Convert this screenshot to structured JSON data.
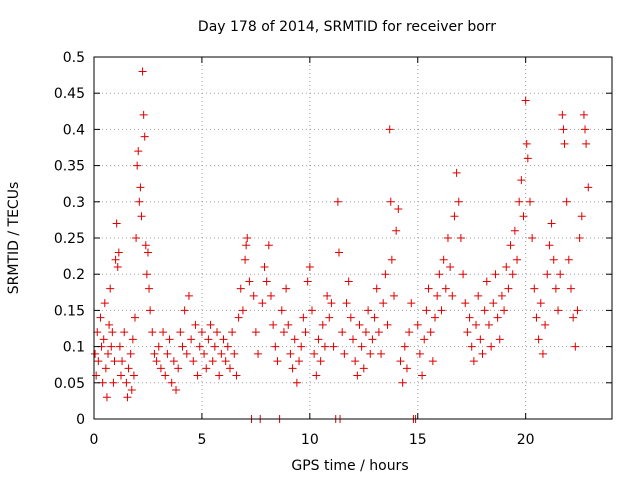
{
  "chart_data": {
    "type": "scatter",
    "title": "Day 178 of 2014, SRMTID for receiver borr",
    "xlabel": "GPS time / hours",
    "ylabel": "SRMTID / TECUs",
    "xlim": [
      0,
      24
    ],
    "ylim": [
      0,
      0.5
    ],
    "x_ticks": [
      0,
      5,
      10,
      15,
      20
    ],
    "x_tick_labels": [
      "0",
      "5",
      "10",
      "15",
      "20"
    ],
    "y_ticks": [
      0,
      0.05,
      0.1,
      0.15,
      0.2,
      0.25,
      0.3,
      0.35,
      0.4,
      0.45,
      0.5
    ],
    "y_tick_labels": [
      "0",
      "0.05",
      "0.1",
      "0.15",
      "0.2",
      "0.25",
      "0.3",
      "0.35",
      "0.4",
      "0.45",
      "0.5"
    ],
    "grid": true,
    "marker": "+",
    "marker_color": "#dd0000",
    "series": [
      {
        "name": "SRMTID",
        "points": [
          [
            0.05,
            0.09
          ],
          [
            0.1,
            0.06
          ],
          [
            0.15,
            0.12
          ],
          [
            0.2,
            0.08
          ],
          [
            0.3,
            0.14
          ],
          [
            0.35,
            0.1
          ],
          [
            0.4,
            0.05
          ],
          [
            0.45,
            0.11
          ],
          [
            0.5,
            0.16
          ],
          [
            0.55,
            0.07
          ],
          [
            0.6,
            0.03
          ],
          [
            0.65,
            0.09
          ],
          [
            0.7,
            0.13
          ],
          [
            0.75,
            0.18
          ],
          [
            0.8,
            0.1
          ],
          [
            0.85,
            0.12
          ],
          [
            0.9,
            0.05
          ],
          [
            0.95,
            0.08
          ],
          [
            1.0,
            0.22
          ],
          [
            1.05,
            0.27
          ],
          [
            1.1,
            0.21
          ],
          [
            1.15,
            0.23
          ],
          [
            1.2,
            0.1
          ],
          [
            1.25,
            0.06
          ],
          [
            1.3,
            0.08
          ],
          [
            1.4,
            0.12
          ],
          [
            1.5,
            0.05
          ],
          [
            1.55,
            0.03
          ],
          [
            1.6,
            0.07
          ],
          [
            1.7,
            0.09
          ],
          [
            1.75,
            0.04
          ],
          [
            1.8,
            0.11
          ],
          [
            1.85,
            0.06
          ],
          [
            1.9,
            0.14
          ],
          [
            1.95,
            0.25
          ],
          [
            2.0,
            0.35
          ],
          [
            2.05,
            0.37
          ],
          [
            2.1,
            0.3
          ],
          [
            2.15,
            0.32
          ],
          [
            2.2,
            0.28
          ],
          [
            2.25,
            0.48
          ],
          [
            2.3,
            0.42
          ],
          [
            2.35,
            0.39
          ],
          [
            2.4,
            0.24
          ],
          [
            2.45,
            0.2
          ],
          [
            2.5,
            0.23
          ],
          [
            2.55,
            0.18
          ],
          [
            2.6,
            0.15
          ],
          [
            2.7,
            0.12
          ],
          [
            2.8,
            0.09
          ],
          [
            2.9,
            0.08
          ],
          [
            3.0,
            0.1
          ],
          [
            3.1,
            0.07
          ],
          [
            3.2,
            0.12
          ],
          [
            3.3,
            0.06
          ],
          [
            3.4,
            0.09
          ],
          [
            3.5,
            0.11
          ],
          [
            3.6,
            0.05
          ],
          [
            3.7,
            0.08
          ],
          [
            3.8,
            0.04
          ],
          [
            3.9,
            0.07
          ],
          [
            4.0,
            0.12
          ],
          [
            4.1,
            0.1
          ],
          [
            4.2,
            0.15
          ],
          [
            4.3,
            0.09
          ],
          [
            4.4,
            0.17
          ],
          [
            4.5,
            0.11
          ],
          [
            4.6,
            0.08
          ],
          [
            4.7,
            0.13
          ],
          [
            4.8,
            0.06
          ],
          [
            4.9,
            0.1
          ],
          [
            5.0,
            0.12
          ],
          [
            5.1,
            0.09
          ],
          [
            5.2,
            0.07
          ],
          [
            5.3,
            0.11
          ],
          [
            5.4,
            0.13
          ],
          [
            5.5,
            0.08
          ],
          [
            5.6,
            0.1
          ],
          [
            5.7,
            0.12
          ],
          [
            5.8,
            0.06
          ],
          [
            5.9,
            0.09
          ],
          [
            6.0,
            0.11
          ],
          [
            6.1,
            0.08
          ],
          [
            6.2,
            0.1
          ],
          [
            6.3,
            0.07
          ],
          [
            6.4,
            0.12
          ],
          [
            6.5,
            0.09
          ],
          [
            6.6,
            0.06
          ],
          [
            6.7,
            0.14
          ],
          [
            6.8,
            0.18
          ],
          [
            6.9,
            0.15
          ],
          [
            7.0,
            0.22
          ],
          [
            7.05,
            0.24
          ],
          [
            7.1,
            0.25
          ],
          [
            7.2,
            0.19
          ],
          [
            7.3,
            0.0
          ],
          [
            7.4,
            0.17
          ],
          [
            7.5,
            0.12
          ],
          [
            7.6,
            0.09
          ],
          [
            7.7,
            0.0
          ],
          [
            7.8,
            0.16
          ],
          [
            7.9,
            0.21
          ],
          [
            8.0,
            0.19
          ],
          [
            8.1,
            0.24
          ],
          [
            8.2,
            0.17
          ],
          [
            8.3,
            0.13
          ],
          [
            8.4,
            0.1
          ],
          [
            8.5,
            0.08
          ],
          [
            8.6,
            0.0
          ],
          [
            8.7,
            0.15
          ],
          [
            8.8,
            0.12
          ],
          [
            8.9,
            0.18
          ],
          [
            9.0,
            0.13
          ],
          [
            9.1,
            0.09
          ],
          [
            9.2,
            0.07
          ],
          [
            9.3,
            0.11
          ],
          [
            9.4,
            0.05
          ],
          [
            9.5,
            0.08
          ],
          [
            9.6,
            0.1
          ],
          [
            9.7,
            0.14
          ],
          [
            9.8,
            0.12
          ],
          [
            9.9,
            0.19
          ],
          [
            10.0,
            0.21
          ],
          [
            10.1,
            0.15
          ],
          [
            10.2,
            0.09
          ],
          [
            10.3,
            0.06
          ],
          [
            10.4,
            0.11
          ],
          [
            10.5,
            0.08
          ],
          [
            10.6,
            0.13
          ],
          [
            10.7,
            0.1
          ],
          [
            10.8,
            0.17
          ],
          [
            10.9,
            0.14
          ],
          [
            11.0,
            0.16
          ],
          [
            11.1,
            0.1
          ],
          [
            11.2,
            0.0
          ],
          [
            11.3,
            0.3
          ],
          [
            11.35,
            0.23
          ],
          [
            11.4,
            0.0
          ],
          [
            11.5,
            0.12
          ],
          [
            11.6,
            0.09
          ],
          [
            11.7,
            0.16
          ],
          [
            11.8,
            0.19
          ],
          [
            11.9,
            0.14
          ],
          [
            12.0,
            0.11
          ],
          [
            12.1,
            0.08
          ],
          [
            12.2,
            0.06
          ],
          [
            12.3,
            0.13
          ],
          [
            12.4,
            0.1
          ],
          [
            12.5,
            0.07
          ],
          [
            12.6,
            0.12
          ],
          [
            12.7,
            0.15
          ],
          [
            12.8,
            0.09
          ],
          [
            12.9,
            0.11
          ],
          [
            13.0,
            0.14
          ],
          [
            13.1,
            0.18
          ],
          [
            13.2,
            0.12
          ],
          [
            13.3,
            0.09
          ],
          [
            13.4,
            0.16
          ],
          [
            13.5,
            0.2
          ],
          [
            13.6,
            0.13
          ],
          [
            13.7,
            0.4
          ],
          [
            13.75,
            0.3
          ],
          [
            13.8,
            0.22
          ],
          [
            13.9,
            0.17
          ],
          [
            14.0,
            0.26
          ],
          [
            14.1,
            0.29
          ],
          [
            14.2,
            0.08
          ],
          [
            14.3,
            0.05
          ],
          [
            14.4,
            0.1
          ],
          [
            14.5,
            0.07
          ],
          [
            14.6,
            0.12
          ],
          [
            14.7,
            0.16
          ],
          [
            14.8,
            0.0
          ],
          [
            14.9,
            0.0
          ],
          [
            15.0,
            0.13
          ],
          [
            15.1,
            0.09
          ],
          [
            15.2,
            0.06
          ],
          [
            15.3,
            0.11
          ],
          [
            15.4,
            0.15
          ],
          [
            15.5,
            0.18
          ],
          [
            15.6,
            0.12
          ],
          [
            15.7,
            0.08
          ],
          [
            15.8,
            0.14
          ],
          [
            15.9,
            0.17
          ],
          [
            16.0,
            0.2
          ],
          [
            16.1,
            0.15
          ],
          [
            16.2,
            0.22
          ],
          [
            16.3,
            0.18
          ],
          [
            16.4,
            0.25
          ],
          [
            16.5,
            0.21
          ],
          [
            16.6,
            0.17
          ],
          [
            16.7,
            0.28
          ],
          [
            16.8,
            0.34
          ],
          [
            16.9,
            0.3
          ],
          [
            17.0,
            0.25
          ],
          [
            17.1,
            0.2
          ],
          [
            17.2,
            0.16
          ],
          [
            17.3,
            0.12
          ],
          [
            17.4,
            0.14
          ],
          [
            17.5,
            0.1
          ],
          [
            17.6,
            0.08
          ],
          [
            17.7,
            0.13
          ],
          [
            17.8,
            0.17
          ],
          [
            17.9,
            0.11
          ],
          [
            18.0,
            0.09
          ],
          [
            18.1,
            0.15
          ],
          [
            18.2,
            0.19
          ],
          [
            18.3,
            0.13
          ],
          [
            18.4,
            0.1
          ],
          [
            18.5,
            0.16
          ],
          [
            18.6,
            0.2
          ],
          [
            18.7,
            0.14
          ],
          [
            18.8,
            0.11
          ],
          [
            18.9,
            0.17
          ],
          [
            19.0,
            0.15
          ],
          [
            19.1,
            0.21
          ],
          [
            19.2,
            0.18
          ],
          [
            19.3,
            0.24
          ],
          [
            19.4,
            0.2
          ],
          [
            19.5,
            0.26
          ],
          [
            19.6,
            0.22
          ],
          [
            19.7,
            0.3
          ],
          [
            19.8,
            0.33
          ],
          [
            19.9,
            0.28
          ],
          [
            20.0,
            0.44
          ],
          [
            20.05,
            0.38
          ],
          [
            20.1,
            0.36
          ],
          [
            20.2,
            0.3
          ],
          [
            20.3,
            0.25
          ],
          [
            20.4,
            0.18
          ],
          [
            20.5,
            0.14
          ],
          [
            20.6,
            0.11
          ],
          [
            20.7,
            0.16
          ],
          [
            20.8,
            0.09
          ],
          [
            20.9,
            0.13
          ],
          [
            21.0,
            0.2
          ],
          [
            21.1,
            0.24
          ],
          [
            21.2,
            0.27
          ],
          [
            21.3,
            0.22
          ],
          [
            21.4,
            0.18
          ],
          [
            21.5,
            0.15
          ],
          [
            21.6,
            0.2
          ],
          [
            21.7,
            0.42
          ],
          [
            21.75,
            0.4
          ],
          [
            21.8,
            0.38
          ],
          [
            21.9,
            0.3
          ],
          [
            22.0,
            0.22
          ],
          [
            22.1,
            0.18
          ],
          [
            22.2,
            0.14
          ],
          [
            22.3,
            0.1
          ],
          [
            22.4,
            0.15
          ],
          [
            22.5,
            0.25
          ],
          [
            22.6,
            0.28
          ],
          [
            22.7,
            0.42
          ],
          [
            22.75,
            0.4
          ],
          [
            22.8,
            0.38
          ],
          [
            22.9,
            0.32
          ]
        ]
      }
    ]
  }
}
